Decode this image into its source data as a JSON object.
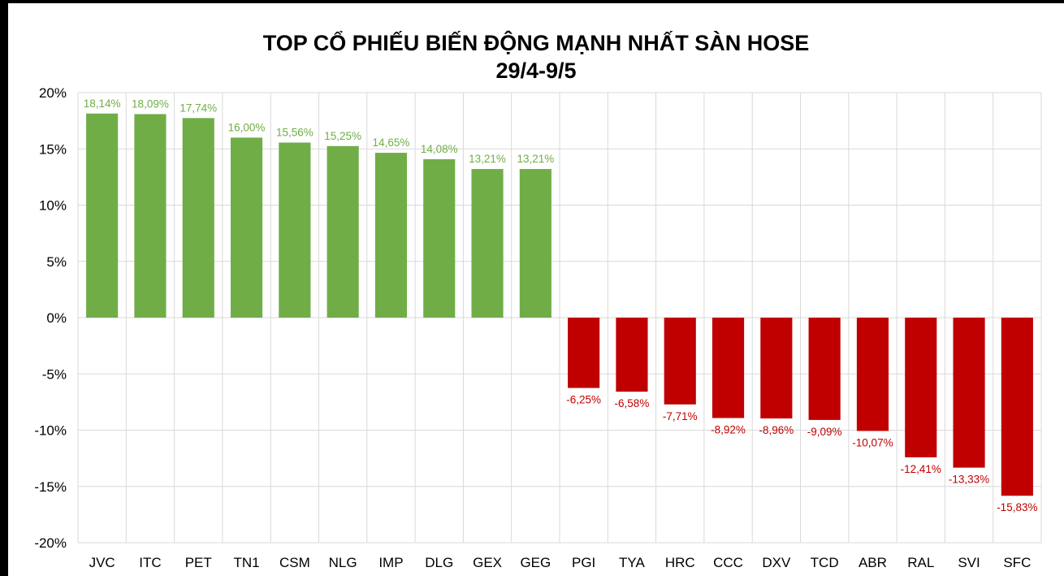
{
  "chart_data": {
    "type": "bar",
    "title": "TOP CỔ PHIẾU BIẾN ĐỘNG MẠNH NHẤT SÀN HOSE",
    "subtitle": "29/4-9/5",
    "xlabel": "",
    "ylabel": "",
    "ylim": [
      -20,
      20
    ],
    "yticks": [
      20,
      15,
      10,
      5,
      0,
      -5,
      -10,
      -15,
      -20
    ],
    "ytick_labels": [
      "20%",
      "15%",
      "10%",
      "5%",
      "0%",
      "-5%",
      "-10%",
      "-15%",
      "-20%"
    ],
    "grid": true,
    "legend": "none",
    "categories": [
      "JVC",
      "ITC",
      "PET",
      "TN1",
      "CSM",
      "NLG",
      "IMP",
      "DLG",
      "GEX",
      "GEG",
      "PGI",
      "TYA",
      "HRC",
      "CCC",
      "DXV",
      "TCD",
      "ABR",
      "RAL",
      "SVI",
      "SFC"
    ],
    "values": [
      18.14,
      18.09,
      17.74,
      16.0,
      15.56,
      15.25,
      14.65,
      14.08,
      13.21,
      13.21,
      -6.25,
      -6.58,
      -7.71,
      -8.92,
      -8.96,
      -9.09,
      -10.07,
      -12.41,
      -13.33,
      -15.83
    ],
    "data_labels": [
      "18,14%",
      "18,09%",
      "17,74%",
      "16,00%",
      "15,56%",
      "15,25%",
      "14,65%",
      "14,08%",
      "13,21%",
      "13,21%",
      "-6,25%",
      "-6,58%",
      "-7,71%",
      "-8,92%",
      "-8,96%",
      "-9,09%",
      "-10,07%",
      "-12,41%",
      "-13,33%",
      "-15,83%"
    ],
    "colors": {
      "positive_bar": "#70AD47",
      "positive_label": "#70AD47",
      "negative_bar": "#C00000",
      "negative_label": "#C00000",
      "grid": "#D9D9D9",
      "text": "#000000"
    }
  }
}
